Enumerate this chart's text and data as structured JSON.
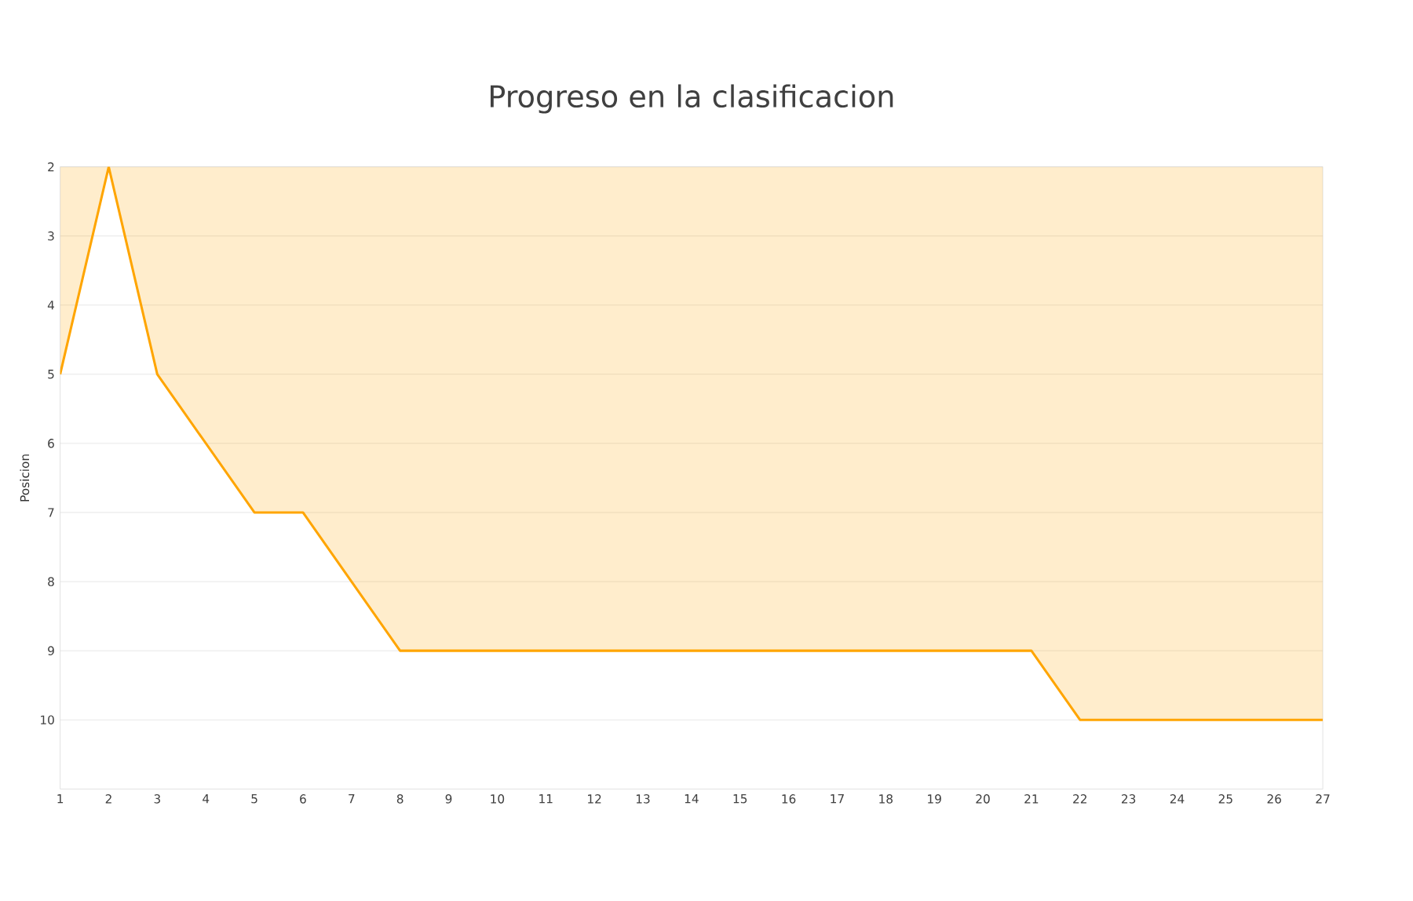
{
  "chart_data": {
    "type": "area",
    "title": "Progreso en la clasificacion",
    "ylabel": "Posicion",
    "x": [
      1,
      2,
      3,
      4,
      5,
      6,
      7,
      8,
      9,
      10,
      11,
      12,
      13,
      14,
      15,
      16,
      17,
      18,
      19,
      20,
      21,
      22,
      23,
      24,
      25,
      26,
      27
    ],
    "series": [
      {
        "color": "#ffa500",
        "values": [
          5,
          2,
          5,
          6,
          7,
          7,
          8,
          9,
          9,
          9,
          9,
          9,
          9,
          9,
          9,
          9,
          9,
          9,
          9,
          9,
          9,
          10,
          10,
          10,
          10,
          10,
          10
        ]
      }
    ],
    "xlim": [
      1,
      27
    ],
    "xticks": [
      1,
      2,
      3,
      4,
      5,
      6,
      7,
      8,
      9,
      10,
      11,
      12,
      13,
      14,
      15,
      16,
      17,
      18,
      19,
      20,
      21,
      22,
      23,
      24,
      25,
      26,
      27
    ],
    "ylim": [
      11,
      2
    ],
    "yticks": [
      2,
      3,
      4,
      5,
      6,
      7,
      8,
      9,
      10
    ],
    "grid": "y"
  }
}
